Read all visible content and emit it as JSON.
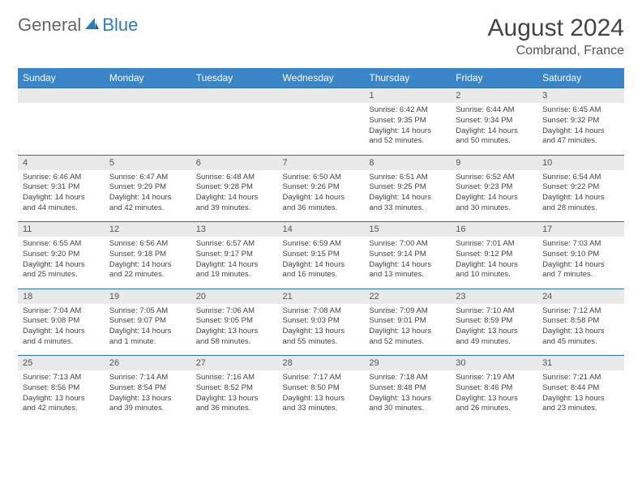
{
  "logo": {
    "part1": "General",
    "part2": "Blue"
  },
  "title": "August 2024",
  "location": "Combrand, France",
  "colors": {
    "header_bg": "#3a85c7",
    "header_text": "#ffffff",
    "numrow_bg": "#e9e9e9",
    "numrow_border": "#2f6fa3",
    "body_text": "#444444",
    "logo_blue": "#2b7bbf"
  },
  "days_of_week": [
    "Sunday",
    "Monday",
    "Tuesday",
    "Wednesday",
    "Thursday",
    "Friday",
    "Saturday"
  ],
  "weeks": [
    {
      "nums": [
        "",
        "",
        "",
        "",
        "1",
        "2",
        "3"
      ],
      "cells": [
        null,
        null,
        null,
        null,
        {
          "sunrise": "Sunrise: 6:42 AM",
          "sunset": "Sunset: 9:35 PM",
          "daylight": "Daylight: 14 hours and 52 minutes."
        },
        {
          "sunrise": "Sunrise: 6:44 AM",
          "sunset": "Sunset: 9:34 PM",
          "daylight": "Daylight: 14 hours and 50 minutes."
        },
        {
          "sunrise": "Sunrise: 6:45 AM",
          "sunset": "Sunset: 9:32 PM",
          "daylight": "Daylight: 14 hours and 47 minutes."
        }
      ]
    },
    {
      "nums": [
        "4",
        "5",
        "6",
        "7",
        "8",
        "9",
        "10"
      ],
      "cells": [
        {
          "sunrise": "Sunrise: 6:46 AM",
          "sunset": "Sunset: 9:31 PM",
          "daylight": "Daylight: 14 hours and 44 minutes."
        },
        {
          "sunrise": "Sunrise: 6:47 AM",
          "sunset": "Sunset: 9:29 PM",
          "daylight": "Daylight: 14 hours and 42 minutes."
        },
        {
          "sunrise": "Sunrise: 6:48 AM",
          "sunset": "Sunset: 9:28 PM",
          "daylight": "Daylight: 14 hours and 39 minutes."
        },
        {
          "sunrise": "Sunrise: 6:50 AM",
          "sunset": "Sunset: 9:26 PM",
          "daylight": "Daylight: 14 hours and 36 minutes."
        },
        {
          "sunrise": "Sunrise: 6:51 AM",
          "sunset": "Sunset: 9:25 PM",
          "daylight": "Daylight: 14 hours and 33 minutes."
        },
        {
          "sunrise": "Sunrise: 6:52 AM",
          "sunset": "Sunset: 9:23 PM",
          "daylight": "Daylight: 14 hours and 30 minutes."
        },
        {
          "sunrise": "Sunrise: 6:54 AM",
          "sunset": "Sunset: 9:22 PM",
          "daylight": "Daylight: 14 hours and 28 minutes."
        }
      ]
    },
    {
      "nums": [
        "11",
        "12",
        "13",
        "14",
        "15",
        "16",
        "17"
      ],
      "cells": [
        {
          "sunrise": "Sunrise: 6:55 AM",
          "sunset": "Sunset: 9:20 PM",
          "daylight": "Daylight: 14 hours and 25 minutes."
        },
        {
          "sunrise": "Sunrise: 6:56 AM",
          "sunset": "Sunset: 9:18 PM",
          "daylight": "Daylight: 14 hours and 22 minutes."
        },
        {
          "sunrise": "Sunrise: 6:57 AM",
          "sunset": "Sunset: 9:17 PM",
          "daylight": "Daylight: 14 hours and 19 minutes."
        },
        {
          "sunrise": "Sunrise: 6:59 AM",
          "sunset": "Sunset: 9:15 PM",
          "daylight": "Daylight: 14 hours and 16 minutes."
        },
        {
          "sunrise": "Sunrise: 7:00 AM",
          "sunset": "Sunset: 9:14 PM",
          "daylight": "Daylight: 14 hours and 13 minutes."
        },
        {
          "sunrise": "Sunrise: 7:01 AM",
          "sunset": "Sunset: 9:12 PM",
          "daylight": "Daylight: 14 hours and 10 minutes."
        },
        {
          "sunrise": "Sunrise: 7:03 AM",
          "sunset": "Sunset: 9:10 PM",
          "daylight": "Daylight: 14 hours and 7 minutes."
        }
      ]
    },
    {
      "nums": [
        "18",
        "19",
        "20",
        "21",
        "22",
        "23",
        "24"
      ],
      "cells": [
        {
          "sunrise": "Sunrise: 7:04 AM",
          "sunset": "Sunset: 9:08 PM",
          "daylight": "Daylight: 14 hours and 4 minutes."
        },
        {
          "sunrise": "Sunrise: 7:05 AM",
          "sunset": "Sunset: 9:07 PM",
          "daylight": "Daylight: 14 hours and 1 minute."
        },
        {
          "sunrise": "Sunrise: 7:06 AM",
          "sunset": "Sunset: 9:05 PM",
          "daylight": "Daylight: 13 hours and 58 minutes."
        },
        {
          "sunrise": "Sunrise: 7:08 AM",
          "sunset": "Sunset: 9:03 PM",
          "daylight": "Daylight: 13 hours and 55 minutes."
        },
        {
          "sunrise": "Sunrise: 7:09 AM",
          "sunset": "Sunset: 9:01 PM",
          "daylight": "Daylight: 13 hours and 52 minutes."
        },
        {
          "sunrise": "Sunrise: 7:10 AM",
          "sunset": "Sunset: 8:59 PM",
          "daylight": "Daylight: 13 hours and 49 minutes."
        },
        {
          "sunrise": "Sunrise: 7:12 AM",
          "sunset": "Sunset: 8:58 PM",
          "daylight": "Daylight: 13 hours and 45 minutes."
        }
      ]
    },
    {
      "nums": [
        "25",
        "26",
        "27",
        "28",
        "29",
        "30",
        "31"
      ],
      "cells": [
        {
          "sunrise": "Sunrise: 7:13 AM",
          "sunset": "Sunset: 8:56 PM",
          "daylight": "Daylight: 13 hours and 42 minutes."
        },
        {
          "sunrise": "Sunrise: 7:14 AM",
          "sunset": "Sunset: 8:54 PM",
          "daylight": "Daylight: 13 hours and 39 minutes."
        },
        {
          "sunrise": "Sunrise: 7:16 AM",
          "sunset": "Sunset: 8:52 PM",
          "daylight": "Daylight: 13 hours and 36 minutes."
        },
        {
          "sunrise": "Sunrise: 7:17 AM",
          "sunset": "Sunset: 8:50 PM",
          "daylight": "Daylight: 13 hours and 33 minutes."
        },
        {
          "sunrise": "Sunrise: 7:18 AM",
          "sunset": "Sunset: 8:48 PM",
          "daylight": "Daylight: 13 hours and 30 minutes."
        },
        {
          "sunrise": "Sunrise: 7:19 AM",
          "sunset": "Sunset: 8:46 PM",
          "daylight": "Daylight: 13 hours and 26 minutes."
        },
        {
          "sunrise": "Sunrise: 7:21 AM",
          "sunset": "Sunset: 8:44 PM",
          "daylight": "Daylight: 13 hours and 23 minutes."
        }
      ]
    }
  ]
}
